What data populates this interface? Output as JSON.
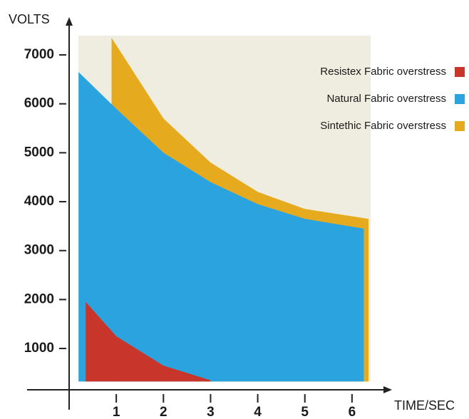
{
  "chart_data": {
    "type": "area",
    "y_label": "VOLTS",
    "x_label": "TIME/SEC",
    "xlim": [
      0,
      7
    ],
    "xticks": [
      1,
      2,
      3,
      4,
      5,
      6
    ],
    "ylim": [
      150,
      7500
    ],
    "yticks": [
      1000,
      2000,
      3000,
      4000,
      5000,
      6000,
      7000
    ],
    "legend": "top-right",
    "series": [
      {
        "name": "Resistex Fabric overstress",
        "color": "#c8352a",
        "x": [
          0.35,
          1,
          2,
          3
        ],
        "values": [
          1950,
          1250,
          650,
          350
        ]
      },
      {
        "name": "Natural Fabric overstress",
        "color": "#2aa3df",
        "x": [
          0.2,
          1,
          2,
          3,
          4,
          5,
          6.25
        ],
        "values": [
          6650,
          5900,
          5000,
          4400,
          3950,
          3650,
          3450
        ]
      },
      {
        "name": "Sintethic Fabric overstress",
        "color": "#e6aa1e",
        "x": [
          0.9,
          2,
          3,
          4,
          5,
          6.35
        ],
        "values": [
          7350,
          5700,
          4800,
          4200,
          3850,
          3650
        ]
      }
    ]
  }
}
